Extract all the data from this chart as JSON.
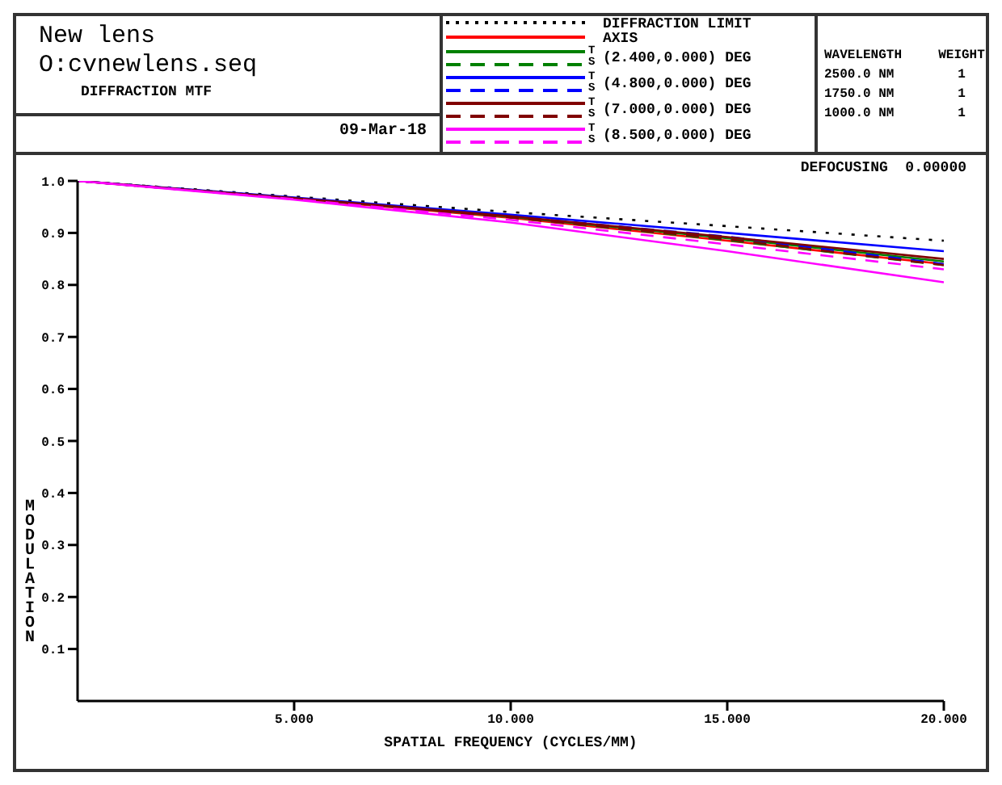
{
  "chart_data": {
    "type": "line",
    "title": "New lens",
    "subtitle": "O:cvnewlens.seq",
    "xlabel": "SPATIAL FREQUENCY (CYCLES/MM)",
    "ylabel": "MODULATION",
    "annotations": [
      "DIFFRACTION MTF",
      "09-Mar-18",
      "WAVELENGTH",
      "WEIGHT",
      "2500.0 NM",
      "1",
      "1750.0 NM",
      "1",
      "1000.0 NM",
      "1",
      "DEFOCUSING  0.00000",
      "T",
      "S"
    ],
    "x": [
      0,
      5,
      10,
      15,
      20
    ],
    "xlim": [
      0,
      20
    ],
    "xticks": [
      {
        "value": 5,
        "label": "5.000"
      },
      {
        "value": 10,
        "label": "10.000"
      },
      {
        "value": 15,
        "label": "15.000"
      },
      {
        "value": 20,
        "label": "20.000"
      }
    ],
    "ylim": [
      0,
      1
    ],
    "yticks": [
      0.1,
      0.2,
      0.3,
      0.4,
      0.5,
      0.6,
      0.7,
      0.8,
      0.9,
      {
        "value": 1,
        "label": "1.0"
      }
    ],
    "grid": false,
    "legend": "top",
    "marker": "none",
    "line_style": "solid",
    "series": [
      {
        "name": "DIFFRACTION LIMIT",
        "color": "#000000",
        "line_style": "dotted",
        "values": [
          1,
          0.97,
          0.94,
          0.913,
          0.885
        ]
      },
      {
        "name": "AXIS",
        "color": "#ff0000",
        "values": [
          1,
          0.966,
          0.929,
          0.885,
          0.84
        ]
      },
      {
        "name": "(2.400,0.000) DEG",
        "color": "#008000",
        "values": [
          1,
          0.967,
          0.931,
          0.89,
          0.845
        ]
      },
      {
        "color": "#008000",
        "line_style": "dashed",
        "values": [
          1,
          0.966,
          0.93,
          0.886,
          0.838
        ]
      },
      {
        "name": "(4.800,0.000) DEG",
        "color": "#0000ff",
        "values": [
          1,
          0.968,
          0.935,
          0.9,
          0.865
        ]
      },
      {
        "color": "#0000ff",
        "line_style": "dashed",
        "values": [
          1,
          0.967,
          0.932,
          0.893,
          0.84
        ]
      },
      {
        "name": "(7.000,0.000) DEG",
        "color": "#800000",
        "values": [
          1,
          0.967,
          0.932,
          0.892,
          0.85
        ]
      },
      {
        "color": "#800000",
        "line_style": "dashed",
        "values": [
          1,
          0.966,
          0.93,
          0.888,
          0.838
        ]
      },
      {
        "name": "(8.500,0.000) DEG",
        "color": "#ff00ff",
        "values": [
          1,
          0.964,
          0.92,
          0.865,
          0.805
        ]
      },
      {
        "color": "#ff00ff",
        "line_style": "dashed",
        "values": [
          1,
          0.965,
          0.925,
          0.878,
          0.83
        ]
      }
    ]
  }
}
